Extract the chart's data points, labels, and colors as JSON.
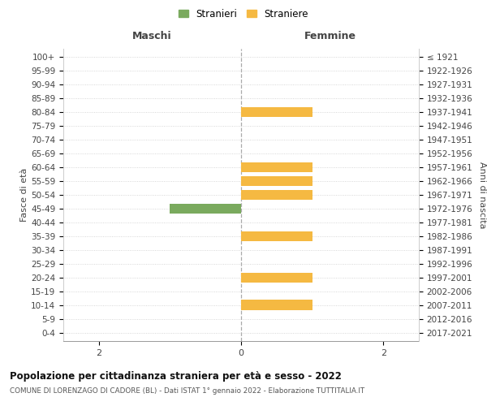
{
  "age_groups": [
    "0-4",
    "5-9",
    "10-14",
    "15-19",
    "20-24",
    "25-29",
    "30-34",
    "35-39",
    "40-44",
    "45-49",
    "50-54",
    "55-59",
    "60-64",
    "65-69",
    "70-74",
    "75-79",
    "80-84",
    "85-89",
    "90-94",
    "95-99",
    "100+"
  ],
  "birth_years": [
    "2017-2021",
    "2012-2016",
    "2007-2011",
    "2002-2006",
    "1997-2001",
    "1992-1996",
    "1987-1991",
    "1982-1986",
    "1977-1981",
    "1972-1976",
    "1967-1971",
    "1962-1966",
    "1957-1961",
    "1952-1956",
    "1947-1951",
    "1942-1946",
    "1937-1941",
    "1932-1936",
    "1927-1931",
    "1922-1926",
    "≤ 1921"
  ],
  "males": [
    0,
    0,
    0,
    0,
    0,
    0,
    0,
    0,
    0,
    1,
    0,
    0,
    0,
    0,
    0,
    0,
    0,
    0,
    0,
    0,
    0
  ],
  "females": [
    0,
    0,
    1,
    0,
    1,
    0,
    0,
    1,
    0,
    0,
    1,
    1,
    1,
    0,
    0,
    0,
    1,
    0,
    0,
    0,
    0
  ],
  "male_color": "#7aaa5e",
  "female_color": "#f5b942",
  "xlim": 2.5,
  "title": "Popolazione per cittadinanza straniera per età e sesso - 2022",
  "subtitle": "COMUNE DI LORENZAGO DI CADORE (BL) - Dati ISTAT 1° gennaio 2022 - Elaborazione TUTTITALIA.IT",
  "ylabel_left": "Fasce di età",
  "ylabel_right": "Anni di nascita",
  "xlabel_maschi": "Maschi",
  "xlabel_femmine": "Femmine",
  "legend_male": "Stranieri",
  "legend_female": "Straniere",
  "bg_color": "#ffffff",
  "grid_color": "#cccccc",
  "bar_height": 0.75
}
